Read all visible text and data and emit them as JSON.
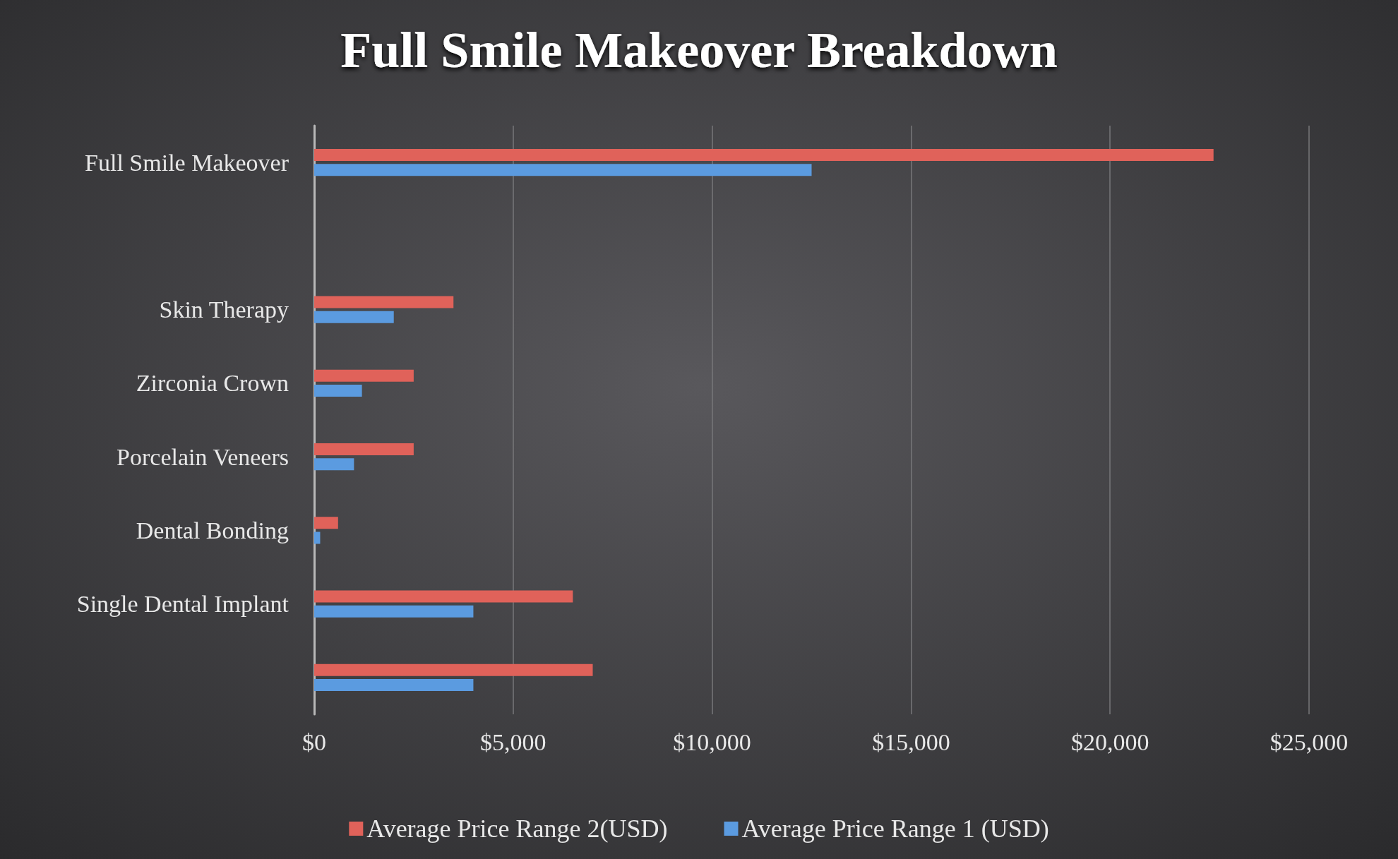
{
  "chart_data": {
    "type": "bar",
    "orientation": "horizontal",
    "title": "Full Smile Makeover Breakdown",
    "categories": [
      "Full Smile Makeover",
      null,
      "Skin Therapy",
      "Zirconia Crown",
      "Porcelain Veneers",
      "Dental Bonding",
      "Single Dental Implant",
      null
    ],
    "series": [
      {
        "name": "Average Price Range 2(USD)",
        "color": "#e0625a",
        "values": [
          22600,
          null,
          3500,
          2500,
          2500,
          600,
          6500,
          7000
        ]
      },
      {
        "name": "Average Price Range 1 (USD)",
        "color": "#5b9be0",
        "values": [
          12500,
          null,
          2000,
          1200,
          1000,
          150,
          4000,
          4000
        ]
      }
    ],
    "xlim": [
      0,
      25000
    ],
    "xticks": [
      {
        "value": 0,
        "label": "$0"
      },
      {
        "value": 5000,
        "label": "$5,000"
      },
      {
        "value": 10000,
        "label": "$10,000"
      },
      {
        "value": 15000,
        "label": "$15,000"
      },
      {
        "value": 20000,
        "label": "$20,000"
      },
      {
        "value": 25000,
        "label": "$25,000"
      }
    ],
    "grid": "x",
    "legend": "bottom"
  }
}
